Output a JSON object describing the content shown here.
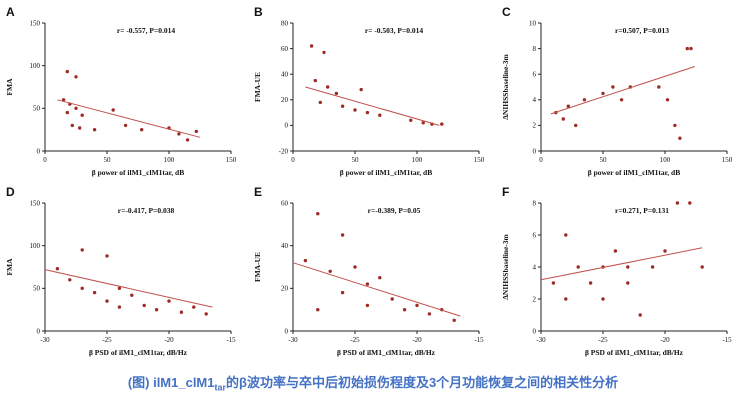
{
  "figure": {
    "point_color": "#9e2b25",
    "line_color": "#c0504d",
    "axis_color": "#222222",
    "background": "#ffffff"
  },
  "caption": {
    "prefix": "(图) ilM1_clM1",
    "subscript": "tar",
    "suffix": "的β波功率与卒中后初始损伤程度及3个月功能恢复之间的相关性分析",
    "color": "#4472c4"
  },
  "chart_data": [
    {
      "type": "scatter",
      "letter": "A",
      "annotation": "r= -0.557, P=0.014",
      "r": -0.557,
      "p": 0.014,
      "xlabel": "β power of ilM1_clM1tar, dB",
      "ylabel": "FMA",
      "xlim": [
        0,
        150
      ],
      "ylim": [
        0,
        150
      ],
      "xticks": [
        0,
        50,
        100,
        150
      ],
      "yticks": [
        0,
        50,
        100,
        150
      ],
      "points": [
        [
          18,
          93
        ],
        [
          25,
          87
        ],
        [
          15,
          60
        ],
        [
          20,
          55
        ],
        [
          25,
          50
        ],
        [
          18,
          45
        ],
        [
          30,
          42
        ],
        [
          22,
          30
        ],
        [
          28,
          27
        ],
        [
          40,
          25
        ],
        [
          55,
          48
        ],
        [
          65,
          30
        ],
        [
          78,
          25
        ],
        [
          100,
          27
        ],
        [
          108,
          20
        ],
        [
          115,
          13
        ],
        [
          122,
          23
        ]
      ],
      "regression_line": [
        [
          10,
          60
        ],
        [
          125,
          16
        ]
      ],
      "legend": null,
      "grid": false
    },
    {
      "type": "scatter",
      "letter": "B",
      "annotation": "r= -0.503, P=0.014",
      "r": -0.503,
      "p": 0.014,
      "xlabel": "β power of ilM1_clM1tar, dB",
      "ylabel": "FMA-UE",
      "xlim": [
        0,
        150
      ],
      "ylim": [
        -20,
        80
      ],
      "xticks": [
        0,
        50,
        100,
        150
      ],
      "yticks": [
        -20,
        0,
        20,
        40,
        60,
        80
      ],
      "points": [
        [
          15,
          62
        ],
        [
          25,
          57
        ],
        [
          18,
          35
        ],
        [
          28,
          30
        ],
        [
          35,
          25
        ],
        [
          22,
          18
        ],
        [
          40,
          15
        ],
        [
          50,
          12
        ],
        [
          55,
          28
        ],
        [
          60,
          10
        ],
        [
          70,
          8
        ],
        [
          95,
          4
        ],
        [
          105,
          2
        ],
        [
          112,
          1
        ],
        [
          120,
          1
        ]
      ],
      "regression_line": [
        [
          10,
          30
        ],
        [
          118,
          0
        ]
      ],
      "legend": null,
      "grid": false
    },
    {
      "type": "scatter",
      "letter": "C",
      "annotation": "r=0.507, P=0.013",
      "r": 0.507,
      "p": 0.013,
      "xlabel": "β power of ilM1_clM1tar, dB",
      "ylabel": "ΔNIHSSbaseline-3m",
      "xlim": [
        0,
        150
      ],
      "ylim": [
        0,
        10
      ],
      "xticks": [
        0,
        50,
        100,
        150
      ],
      "yticks": [
        0,
        2,
        4,
        6,
        8,
        10
      ],
      "points": [
        [
          12,
          3
        ],
        [
          18,
          2.5
        ],
        [
          22,
          3.5
        ],
        [
          28,
          2
        ],
        [
          35,
          4
        ],
        [
          50,
          4.5
        ],
        [
          58,
          5
        ],
        [
          65,
          4
        ],
        [
          72,
          5
        ],
        [
          95,
          5
        ],
        [
          102,
          4
        ],
        [
          108,
          2
        ],
        [
          112,
          1
        ],
        [
          118,
          8
        ],
        [
          121,
          8
        ]
      ],
      "regression_line": [
        [
          8,
          2.9
        ],
        [
          124,
          6.6
        ]
      ],
      "legend": null,
      "grid": false
    },
    {
      "type": "scatter",
      "letter": "D",
      "annotation": "r=-0.417, P=0.038",
      "r": -0.417,
      "p": 0.038,
      "xlabel": "β PSD of ilM1_clM1tar, dB/Hz",
      "ylabel": "FMA",
      "xlim": [
        -30,
        -15
      ],
      "ylim": [
        0,
        150
      ],
      "xticks": [
        -30,
        -25,
        -20,
        -15
      ],
      "yticks": [
        0,
        50,
        100,
        150
      ],
      "points": [
        [
          -29,
          73
        ],
        [
          -28,
          60
        ],
        [
          -27,
          95
        ],
        [
          -27,
          50
        ],
        [
          -26,
          45
        ],
        [
          -25,
          88
        ],
        [
          -25,
          35
        ],
        [
          -24,
          50
        ],
        [
          -24,
          28
        ],
        [
          -23,
          42
        ],
        [
          -22,
          30
        ],
        [
          -21,
          25
        ],
        [
          -20,
          35
        ],
        [
          -19,
          22
        ],
        [
          -18,
          28
        ],
        [
          -17,
          20
        ]
      ],
      "regression_line": [
        [
          -30,
          72
        ],
        [
          -16.5,
          28
        ]
      ],
      "legend": null,
      "grid": false
    },
    {
      "type": "scatter",
      "letter": "E",
      "annotation": "r=-0.389, P=0.05",
      "r": -0.389,
      "p": 0.05,
      "xlabel": "β PSD of ilM1_clM1tar, dB/Hz",
      "ylabel": "FMA-UE",
      "xlim": [
        -30,
        -15
      ],
      "ylim": [
        0,
        60
      ],
      "xticks": [
        -30,
        -25,
        -20,
        -15
      ],
      "yticks": [
        0,
        20,
        40,
        60
      ],
      "points": [
        [
          -29,
          33
        ],
        [
          -28,
          55
        ],
        [
          -28,
          10
        ],
        [
          -27,
          28
        ],
        [
          -26,
          45
        ],
        [
          -26,
          18
        ],
        [
          -25,
          30
        ],
        [
          -24,
          22
        ],
        [
          -24,
          12
        ],
        [
          -23,
          25
        ],
        [
          -22,
          15
        ],
        [
          -21,
          10
        ],
        [
          -20,
          12
        ],
        [
          -19,
          8
        ],
        [
          -18,
          10
        ],
        [
          -17,
          5
        ]
      ],
      "regression_line": [
        [
          -30,
          32
        ],
        [
          -16.5,
          7
        ]
      ],
      "legend": null,
      "grid": false
    },
    {
      "type": "scatter",
      "letter": "F",
      "annotation": "r=0.271, P=0.131",
      "r": 0.271,
      "p": 0.131,
      "xlabel": "β PSD of ilM1_clM1tar, dB/Hz",
      "ylabel": "ΔNIHSSbaseline-3m",
      "xlim": [
        -30,
        -15
      ],
      "ylim": [
        0,
        8
      ],
      "xticks": [
        -30,
        -25,
        -20,
        -15
      ],
      "yticks": [
        0,
        2,
        4,
        6,
        8
      ],
      "points": [
        [
          -29,
          3
        ],
        [
          -28,
          2
        ],
        [
          -28,
          6
        ],
        [
          -27,
          4
        ],
        [
          -26,
          3
        ],
        [
          -25,
          4
        ],
        [
          -25,
          2
        ],
        [
          -24,
          5
        ],
        [
          -23,
          4
        ],
        [
          -23,
          3
        ],
        [
          -22,
          1
        ],
        [
          -21,
          4
        ],
        [
          -20,
          5
        ],
        [
          -19,
          8
        ],
        [
          -18,
          8
        ],
        [
          -17,
          4
        ]
      ],
      "regression_line": [
        [
          -30,
          3.2
        ],
        [
          -17,
          5.2
        ]
      ],
      "legend": null,
      "grid": false
    }
  ]
}
